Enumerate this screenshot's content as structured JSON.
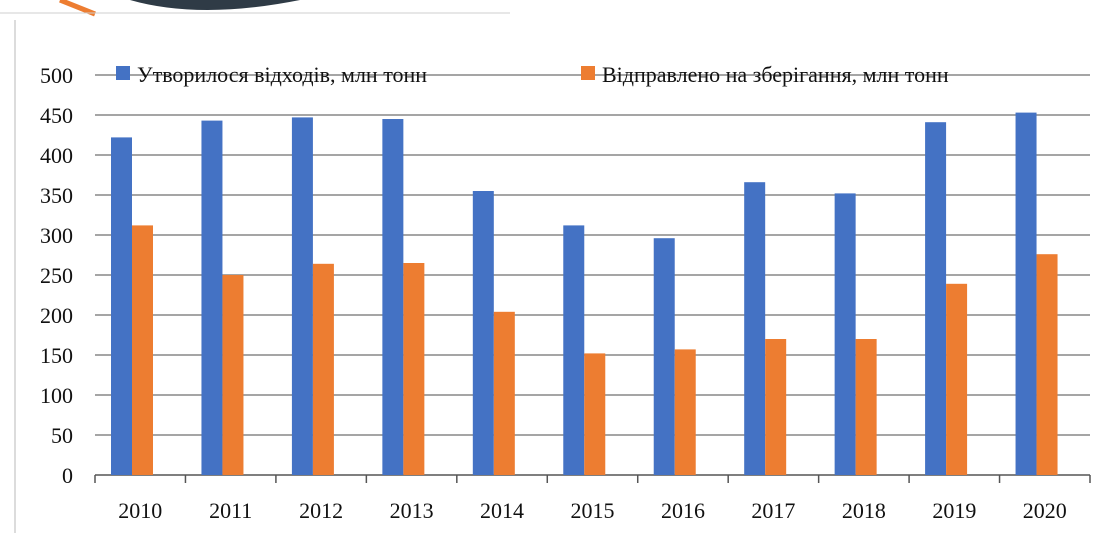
{
  "chart_data": {
    "type": "bar",
    "categories": [
      "2010",
      "2011",
      "2012",
      "2013",
      "2014",
      "2015",
      "2016",
      "2017",
      "2018",
      "2019",
      "2020"
    ],
    "series": [
      {
        "name": "Утворилося відходів, млн тонн",
        "color": "#4472C4",
        "values": [
          422,
          443,
          447,
          445,
          355,
          312,
          296,
          366,
          352,
          441,
          453
        ]
      },
      {
        "name": "Відправлено на зберігання, млн тонн",
        "color": "#ED7D31",
        "values": [
          312,
          250,
          264,
          265,
          204,
          152,
          157,
          170,
          170,
          239,
          276
        ]
      }
    ],
    "ylim": [
      0,
      500
    ],
    "yticks": [
      "0",
      "50",
      "100",
      "150",
      "200",
      "250",
      "300",
      "350",
      "400",
      "450",
      "500"
    ],
    "grid": true,
    "legend_position": "top"
  }
}
